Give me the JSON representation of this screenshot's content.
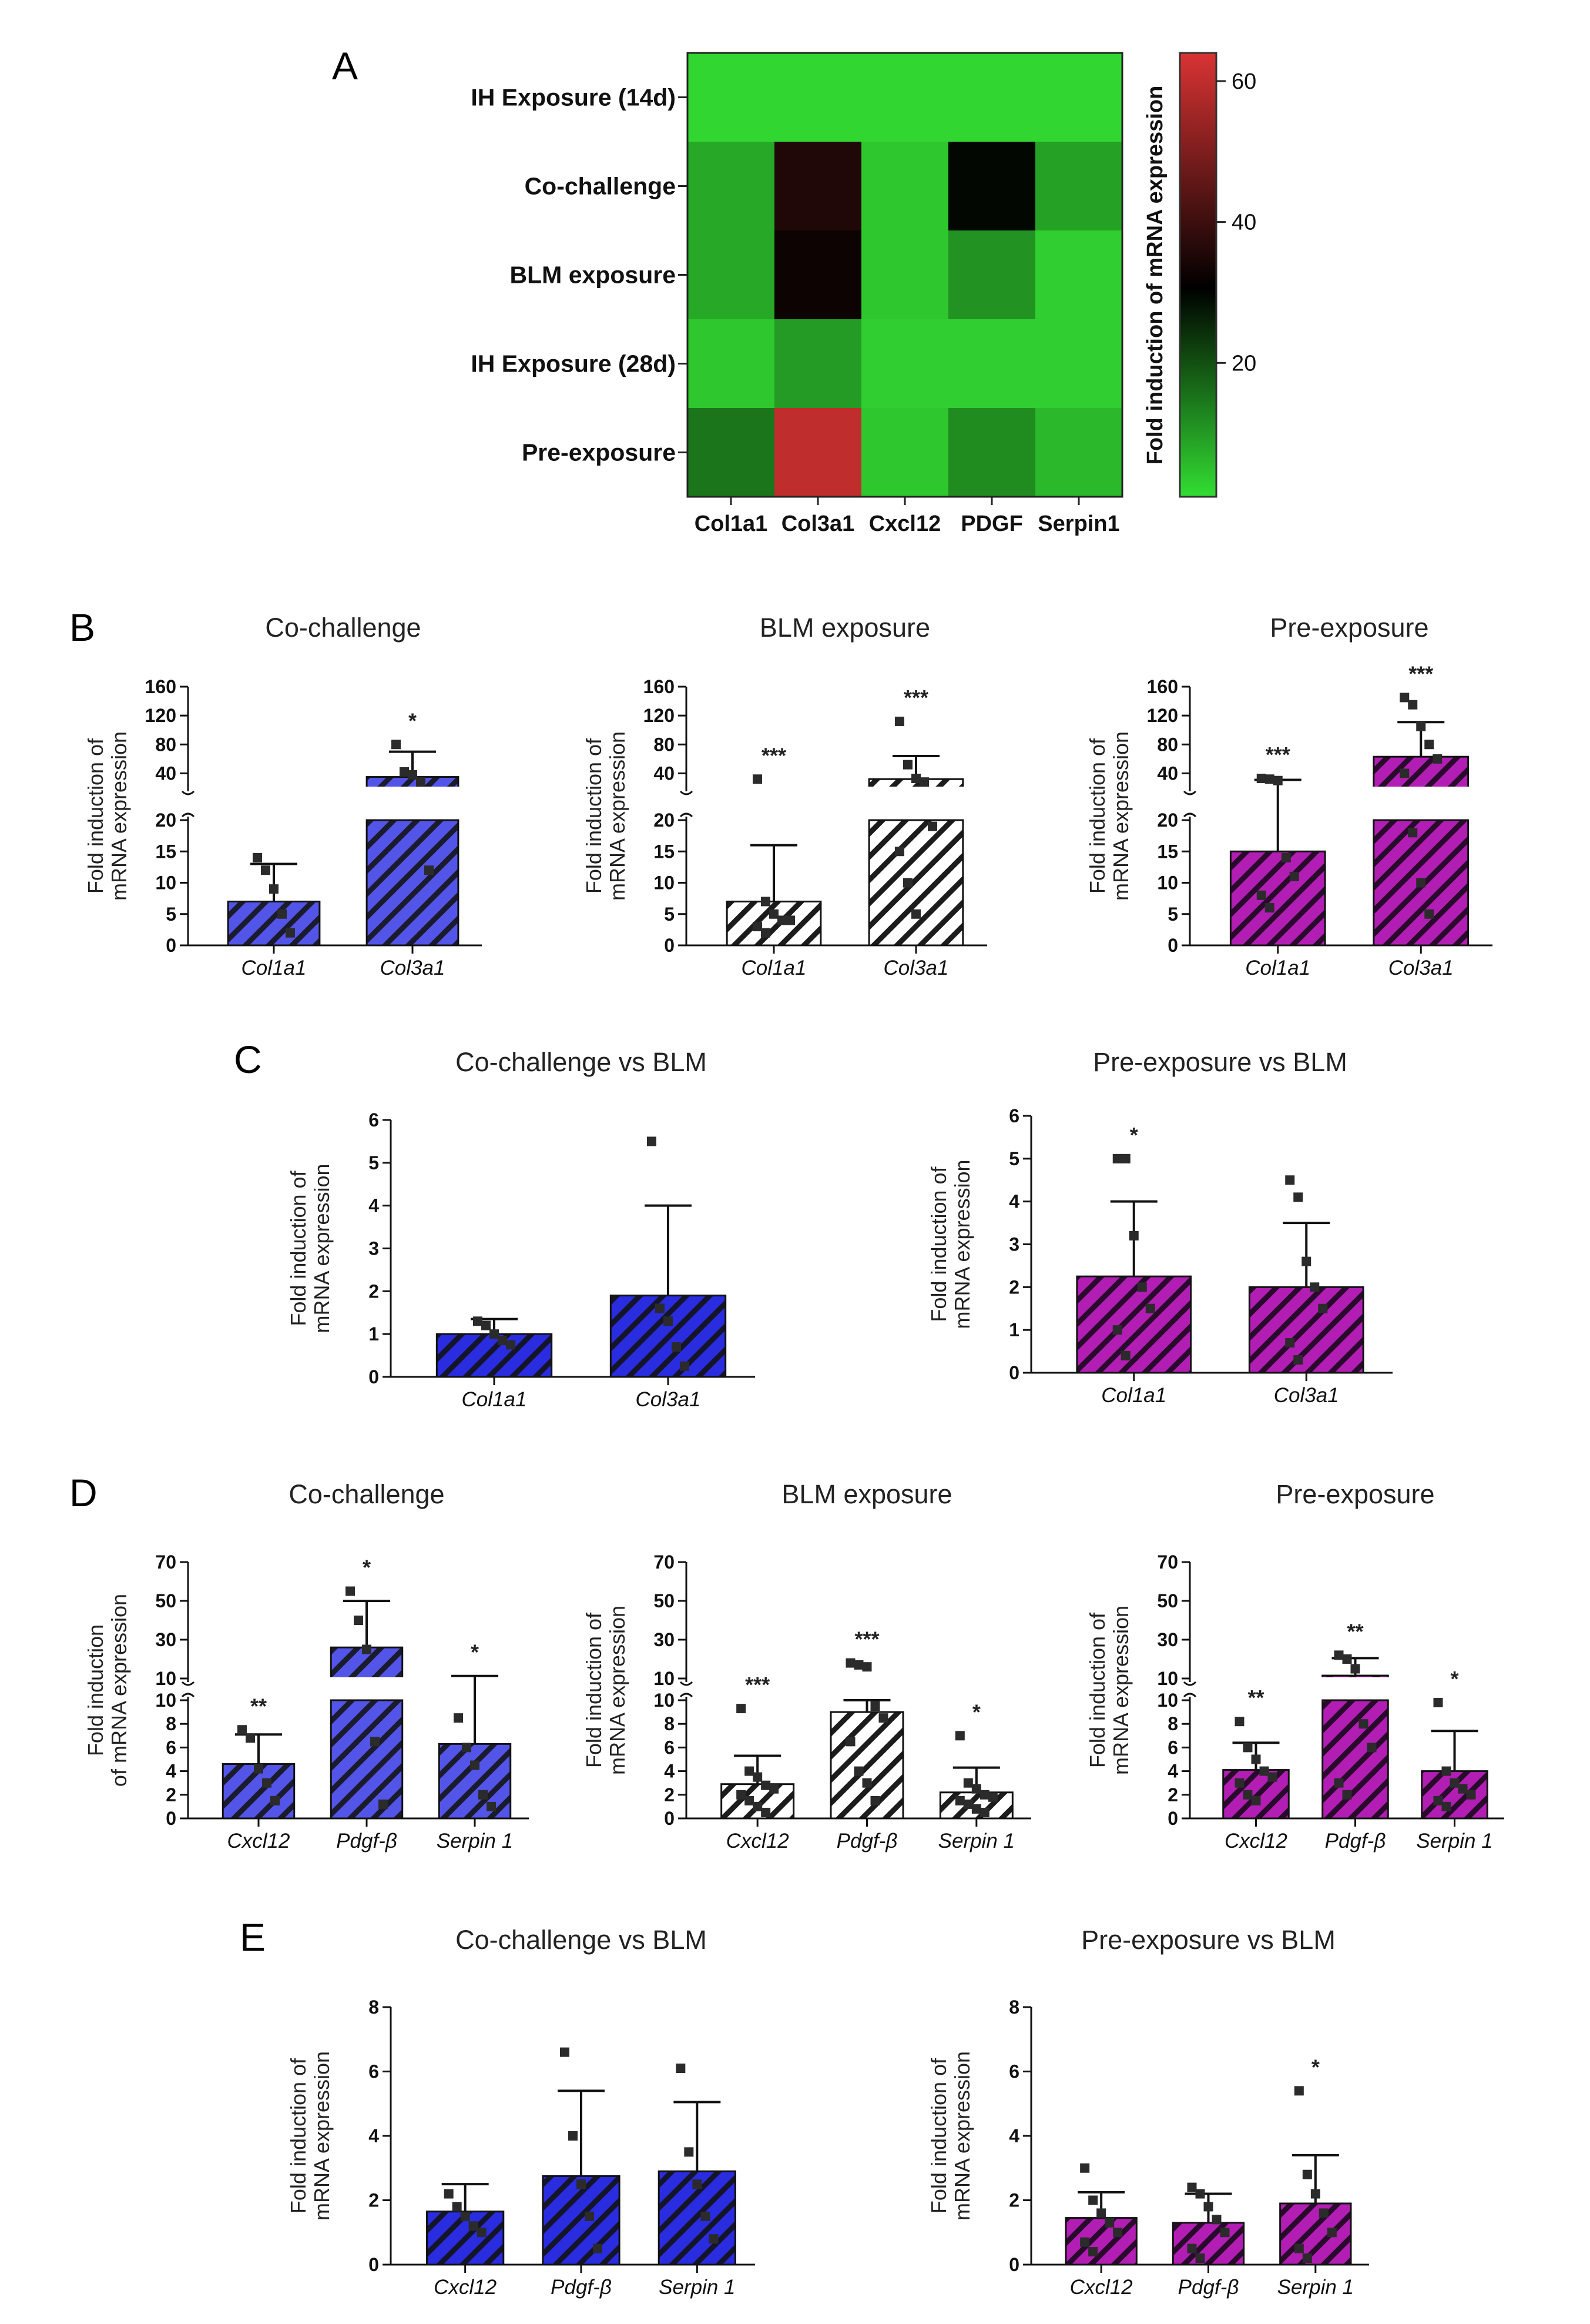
{
  "figure": {
    "panel_labels": [
      "A",
      "B",
      "C",
      "D",
      "E"
    ],
    "ylabel_main": "Fold induction of",
    "ylabel_sub": "mRNA expression",
    "ylabel_d_main": "Fold induction",
    "ylabel_d_sub": "of mRNA expression"
  },
  "colors": {
    "blue": "#5355e8",
    "blue_dark": "#2a2ce0",
    "magenta": "#b21eb4",
    "white_bar": "#ffffff",
    "heat_low": "#33dd33",
    "heat_mid": "#000000",
    "heat_high": "#d93333"
  },
  "chart_data": [
    {
      "id": "A",
      "type": "heatmap",
      "rows": [
        "IH Exposure (14d)",
        "Co-challenge",
        "BLM exposure",
        "IH Exposure (28d)",
        "Pre-exposure"
      ],
      "columns": [
        "Col1a1",
        "Col3a1",
        "Cxcl12",
        "PDGF",
        "Serpin1"
      ],
      "values": [
        [
          2,
          2,
          2,
          2,
          2
        ],
        [
          8,
          36,
          4,
          30,
          9
        ],
        [
          8,
          33,
          4,
          11,
          3
        ],
        [
          4,
          10,
          3,
          3,
          3
        ],
        [
          15,
          60,
          4,
          12,
          6
        ]
      ],
      "colorbar": {
        "label": "Fold induction of mRNA expression",
        "ticks": [
          20,
          40,
          60
        ],
        "range": [
          1,
          64
        ]
      }
    },
    {
      "id": "B1",
      "type": "bar",
      "title": "Co-challenge",
      "style": "blue",
      "categories": [
        "Col1a1",
        "Col3a1"
      ],
      "values": [
        7,
        35
      ],
      "errors": [
        6,
        35
      ],
      "significance": [
        "",
        "*"
      ],
      "points": [
        [
          14,
          12,
          9,
          5,
          2
        ],
        [
          80,
          42,
          38,
          28,
          12
        ]
      ],
      "axis": {
        "lower": [
          0,
          20
        ],
        "upper": [
          20,
          160
        ],
        "lower_ticks": [
          0,
          5,
          10,
          15,
          20
        ],
        "upper_ticks": [
          40,
          80,
          120,
          160
        ]
      },
      "ylabel": "Fold induction of mRNA expression"
    },
    {
      "id": "B2",
      "type": "bar",
      "title": "BLM exposure",
      "style": "white",
      "categories": [
        "Col1a1",
        "Col3a1"
      ],
      "values": [
        7,
        32
      ],
      "errors": [
        9,
        32
      ],
      "significance": [
        "***",
        "***"
      ],
      "points": [
        [
          32,
          7,
          5,
          4,
          4,
          3,
          2
        ],
        [
          112,
          52,
          33,
          28,
          19,
          15,
          10,
          5
        ]
      ],
      "axis": {
        "lower": [
          0,
          20
        ],
        "upper": [
          20,
          160
        ],
        "lower_ticks": [
          0,
          5,
          10,
          15,
          20
        ],
        "upper_ticks": [
          40,
          80,
          120,
          160
        ]
      },
      "ylabel": "Fold induction of mRNA expression"
    },
    {
      "id": "B3",
      "type": "bar",
      "title": "Pre-exposure",
      "style": "magenta",
      "categories": [
        "Col1a1",
        "Col3a1"
      ],
      "values": [
        15,
        63
      ],
      "errors": [
        16,
        48
      ],
      "significance": [
        "***",
        "***"
      ],
      "points": [
        [
          33,
          32,
          30,
          14,
          11,
          8,
          6
        ],
        [
          145,
          135,
          105,
          80,
          60,
          40,
          18,
          10,
          5
        ]
      ],
      "axis": {
        "lower": [
          0,
          20
        ],
        "upper": [
          20,
          160
        ],
        "lower_ticks": [
          0,
          5,
          10,
          15,
          20
        ],
        "upper_ticks": [
          40,
          80,
          120,
          160
        ]
      },
      "ylabel": "Fold induction of mRNA expression"
    },
    {
      "id": "C1",
      "type": "bar",
      "title": "Co-challenge vs BLM",
      "style": "blue_dark",
      "categories": [
        "Col1a1",
        "Col3a1"
      ],
      "values": [
        1.0,
        1.9
      ],
      "errors": [
        0.35,
        2.1
      ],
      "significance": [
        "",
        ""
      ],
      "points": [
        [
          1.3,
          1.2,
          1.0,
          0.85,
          0.75
        ],
        [
          5.5,
          1.6,
          1.3,
          0.7,
          0.25
        ]
      ],
      "axis": {
        "range": [
          0,
          6
        ],
        "ticks": [
          0,
          1,
          2,
          3,
          4,
          5,
          6
        ]
      },
      "ylabel": "Fold induction of mRNA expression"
    },
    {
      "id": "C2",
      "type": "bar",
      "title": "Pre-exposure vs BLM",
      "style": "magenta",
      "categories": [
        "Col1a1",
        "Col3a1"
      ],
      "values": [
        2.25,
        2.0
      ],
      "errors": [
        1.75,
        1.5
      ],
      "significance": [
        "*",
        ""
      ],
      "points": [
        [
          5.0,
          5.0,
          3.2,
          2.0,
          1.5,
          1.0,
          0.4
        ],
        [
          4.5,
          4.1,
          2.6,
          2.0,
          1.5,
          0.7,
          0.3
        ]
      ],
      "axis": {
        "range": [
          0,
          6
        ],
        "ticks": [
          0,
          1,
          2,
          3,
          4,
          5,
          6
        ]
      },
      "ylabel": "Fold induction of mRNA expression"
    },
    {
      "id": "D1",
      "type": "bar",
      "title": "Co-challenge",
      "style": "blue",
      "categories": [
        "Cxcl12",
        "Pdgf-β",
        "Serpin 1"
      ],
      "values": [
        4.6,
        26,
        6.3
      ],
      "errors": [
        2.5,
        24,
        5
      ],
      "significance": [
        "**",
        "*",
        "*"
      ],
      "points": [
        [
          7.5,
          6.8,
          4.2,
          3.0,
          1.5
        ],
        [
          55,
          40,
          25,
          6.5,
          1.2
        ],
        [
          8.5,
          6.0,
          4.5,
          2.0,
          1.0
        ]
      ],
      "axis": {
        "lower": [
          0,
          10
        ],
        "upper": [
          10,
          70
        ],
        "lower_ticks": [
          0,
          2,
          4,
          6,
          8,
          10
        ],
        "upper_ticks": [
          10,
          30,
          50,
          70
        ]
      },
      "ylabel": "Fold induction of mRNA expression"
    },
    {
      "id": "D2",
      "type": "bar",
      "title": "BLM exposure",
      "style": "white",
      "categories": [
        "Cxcl12",
        "Pdgf-β",
        "Serpin 1"
      ],
      "values": [
        2.9,
        9,
        2.2
      ],
      "errors": [
        2.4,
        1,
        2.1
      ],
      "significance": [
        "***",
        "***",
        "*"
      ],
      "points": [
        [
          9.3,
          4.0,
          3.5,
          2.8,
          2.5,
          2.0,
          1.5,
          1.0,
          0.5
        ],
        [
          18,
          17,
          16,
          9.5,
          8.5,
          6.5,
          4.0,
          3.0,
          1.5
        ],
        [
          7.0,
          3.0,
          2.5,
          2.0,
          1.8,
          1.5,
          1.2,
          0.8,
          0.5
        ]
      ],
      "axis": {
        "lower": [
          0,
          10
        ],
        "upper": [
          10,
          70
        ],
        "lower_ticks": [
          0,
          2,
          4,
          6,
          8,
          10
        ],
        "upper_ticks": [
          10,
          30,
          50,
          70
        ]
      },
      "ylabel": "Fold induction of mRNA expression"
    },
    {
      "id": "D3",
      "type": "bar",
      "title": "Pre-exposure",
      "style": "magenta",
      "categories": [
        "Cxcl12",
        "Pdgf-β",
        "Serpin 1"
      ],
      "values": [
        4.1,
        11.5,
        4.0
      ],
      "errors": [
        2.3,
        9,
        3.4
      ],
      "significance": [
        "**",
        "**",
        "*"
      ],
      "points": [
        [
          8.2,
          6.0,
          5.0,
          4.0,
          3.5,
          3.0,
          2.0,
          1.5
        ],
        [
          22,
          20,
          15,
          8.0,
          6.0,
          3.0,
          2.0
        ],
        [
          9.8,
          4.0,
          3.0,
          2.5,
          2.0,
          1.5,
          1.0
        ]
      ],
      "axis": {
        "lower": [
          0,
          10
        ],
        "upper": [
          10,
          70
        ],
        "lower_ticks": [
          0,
          2,
          4,
          6,
          8,
          10
        ],
        "upper_ticks": [
          10,
          30,
          50,
          70
        ]
      },
      "ylabel": "Fold induction of mRNA expression"
    },
    {
      "id": "E1",
      "type": "bar",
      "title": "Co-challenge vs BLM",
      "style": "blue_dark",
      "categories": [
        "Cxcl12",
        "Pdgf-β",
        "Serpin 1"
      ],
      "values": [
        1.65,
        2.75,
        2.9
      ],
      "errors": [
        0.85,
        2.65,
        2.15
      ],
      "significance": [
        "",
        "",
        ""
      ],
      "points": [
        [
          2.2,
          1.8,
          1.5,
          1.2,
          1.0
        ],
        [
          6.6,
          4.0,
          2.5,
          1.5,
          0.5
        ],
        [
          6.1,
          3.5,
          2.5,
          1.5,
          0.8
        ]
      ],
      "axis": {
        "range": [
          0,
          8
        ],
        "ticks": [
          0,
          2,
          4,
          6,
          8
        ]
      },
      "ylabel": "Fold induction of mRNA expression"
    },
    {
      "id": "E2",
      "type": "bar",
      "title": "Pre-exposure vs BLM",
      "style": "magenta",
      "categories": [
        "Cxcl12",
        "Pdgf-β",
        "Serpin 1"
      ],
      "values": [
        1.45,
        1.3,
        1.9
      ],
      "errors": [
        0.8,
        0.9,
        1.5
      ],
      "significance": [
        "",
        "",
        "*"
      ],
      "points": [
        [
          3.0,
          2.0,
          1.6,
          1.3,
          1.0,
          0.7,
          0.4
        ],
        [
          2.4,
          2.2,
          1.8,
          1.4,
          1.0,
          0.5,
          0.2
        ],
        [
          5.4,
          2.8,
          2.2,
          1.6,
          1.0,
          0.5,
          0.2
        ]
      ],
      "axis": {
        "range": [
          0,
          8
        ],
        "ticks": [
          0,
          2,
          4,
          6,
          8
        ]
      },
      "ylabel": "Fold induction of mRNA expression"
    }
  ]
}
